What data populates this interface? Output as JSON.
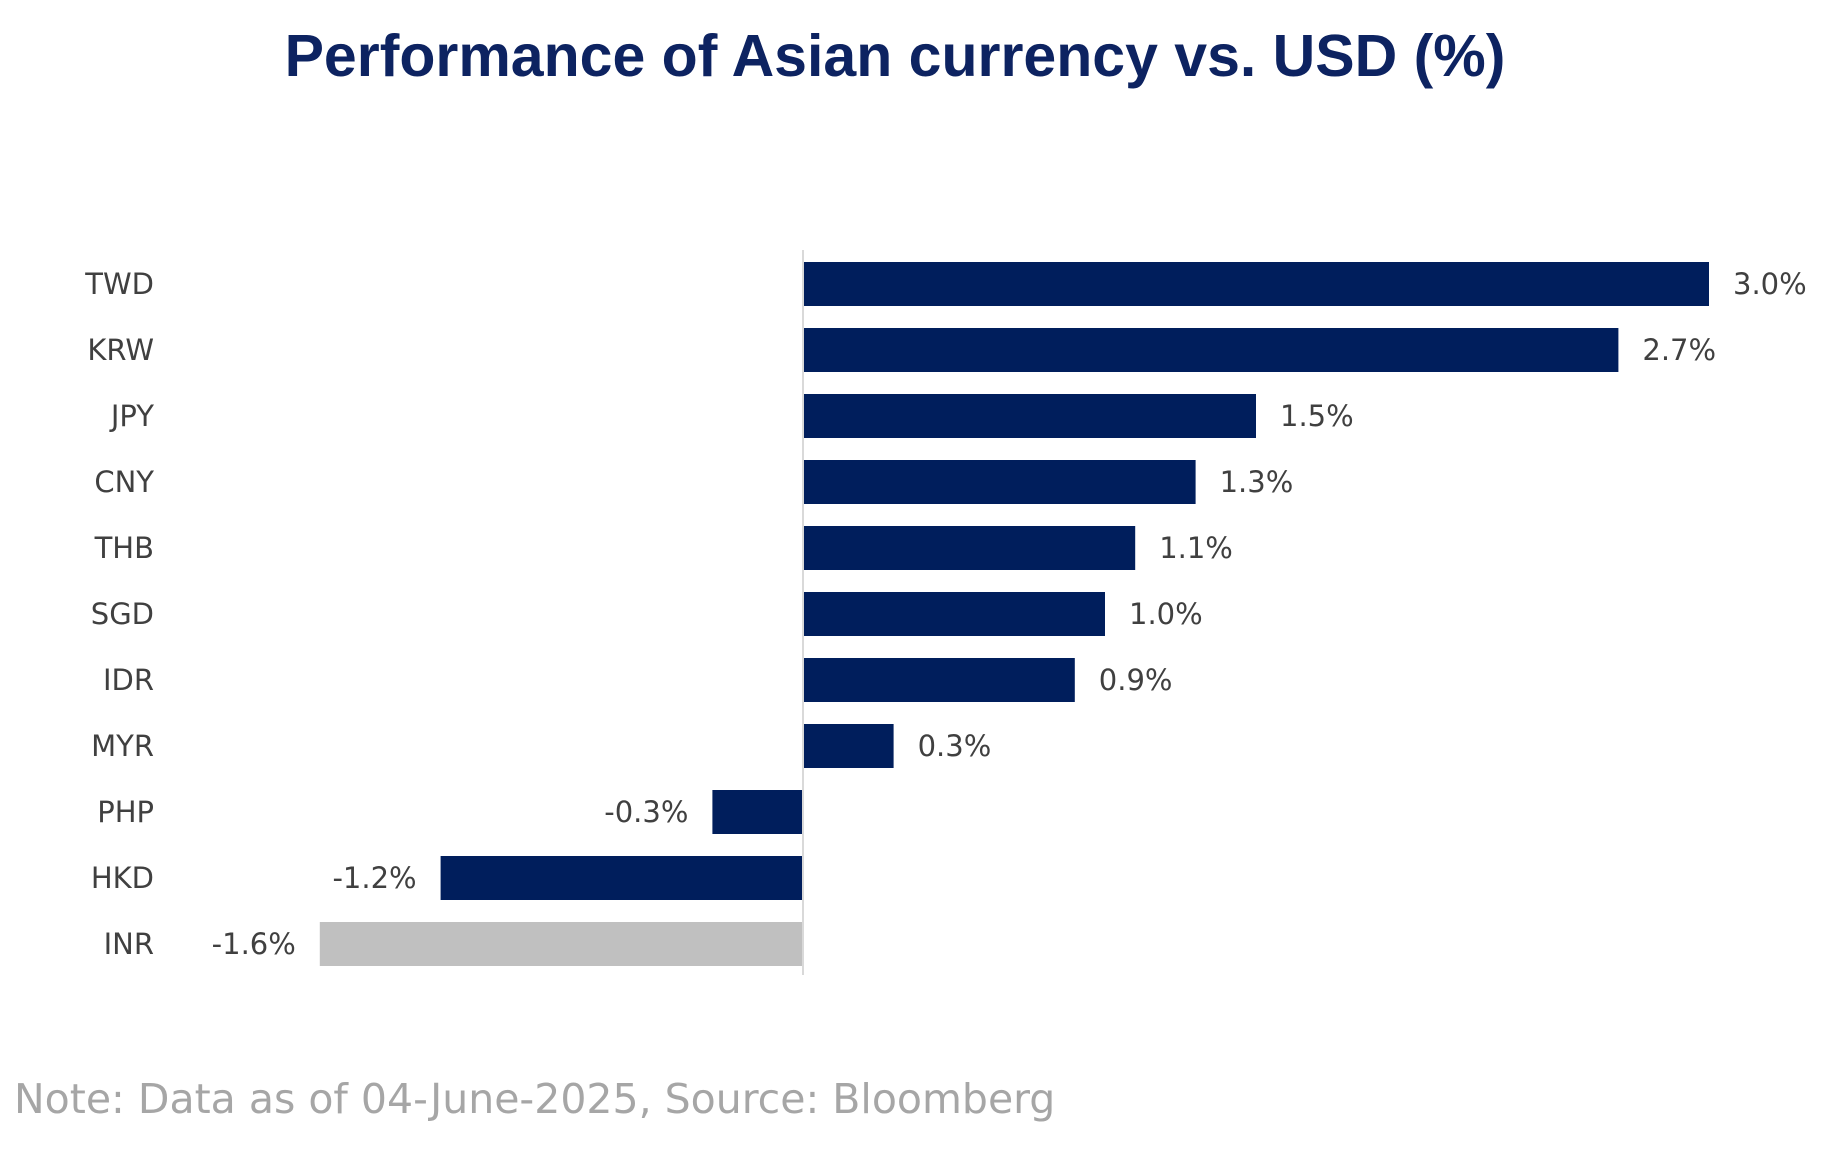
{
  "chart_data": {
    "type": "bar",
    "orientation": "horizontal",
    "title": "Performance of Asian currency vs. USD (%)",
    "categories": [
      "TWD",
      "KRW",
      "JPY",
      "CNY",
      "THB",
      "SGD",
      "IDR",
      "MYR",
      "PHP",
      "HKD",
      "INR"
    ],
    "values": [
      3.0,
      2.7,
      1.5,
      1.3,
      1.1,
      1.0,
      0.9,
      0.3,
      -0.3,
      -1.2,
      -1.6
    ],
    "value_labels": [
      "3.0%",
      "2.7%",
      "1.5%",
      "1.3%",
      "1.1%",
      "1.0%",
      "0.9%",
      "0.3%",
      "-0.3%",
      "-1.2%",
      "-1.6%"
    ],
    "bar_colors": [
      "#001e5c",
      "#001e5c",
      "#001e5c",
      "#001e5c",
      "#001e5c",
      "#001e5c",
      "#001e5c",
      "#001e5c",
      "#001e5c",
      "#001e5c",
      "#c0c0c0"
    ],
    "xlim": [
      -1.6,
      3.0
    ],
    "xlabel": "",
    "ylabel": "",
    "grid": false,
    "legend": "none"
  },
  "colors": {
    "title": "#0d2361",
    "bar": "#001e5c",
    "highlight_bar": "#c0c0c0",
    "axis_line": "#d9d9d9",
    "label_text": "#404040",
    "footnote": "#a6a6a6"
  },
  "footnote": "Note: Data as of 04-June-2025, Source: Bloomberg"
}
